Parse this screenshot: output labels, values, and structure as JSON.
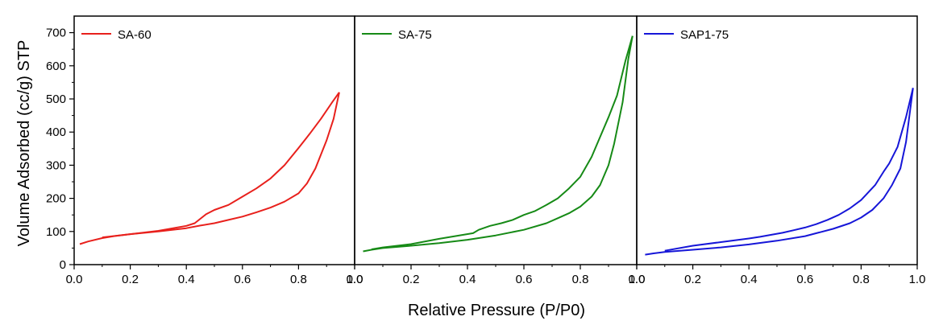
{
  "chart_data": {
    "type": "line",
    "xlabel": "Relative Pressure (P/P0)",
    "ylabel": "Volume Adsorbed (cc/g) STP",
    "xlim": [
      0,
      1
    ],
    "ylim": [
      0,
      750
    ],
    "x_ticks": [
      "0.0",
      "0.2",
      "0.4",
      "0.6",
      "0.8",
      "1.0"
    ],
    "y_ticks": [
      "0",
      "100",
      "200",
      "300",
      "400",
      "500",
      "600",
      "700"
    ],
    "grid": false,
    "legend_position": "top-left",
    "panels": [
      {
        "legend": "SA-60",
        "color": "#e8201c",
        "adsorption": [
          [
            0.02,
            62
          ],
          [
            0.05,
            70
          ],
          [
            0.1,
            80
          ],
          [
            0.15,
            87
          ],
          [
            0.2,
            92
          ],
          [
            0.3,
            100
          ],
          [
            0.4,
            110
          ],
          [
            0.45,
            118
          ],
          [
            0.5,
            125
          ],
          [
            0.55,
            135
          ],
          [
            0.6,
            145
          ],
          [
            0.65,
            158
          ],
          [
            0.7,
            172
          ],
          [
            0.75,
            190
          ],
          [
            0.8,
            215
          ],
          [
            0.83,
            245
          ],
          [
            0.86,
            290
          ],
          [
            0.9,
            375
          ],
          [
            0.925,
            440
          ],
          [
            0.945,
            520
          ]
        ],
        "desorption": [
          [
            0.945,
            520
          ],
          [
            0.92,
            490
          ],
          [
            0.88,
            440
          ],
          [
            0.84,
            395
          ],
          [
            0.8,
            352
          ],
          [
            0.75,
            300
          ],
          [
            0.7,
            260
          ],
          [
            0.65,
            230
          ],
          [
            0.6,
            205
          ],
          [
            0.55,
            180
          ],
          [
            0.5,
            165
          ],
          [
            0.47,
            152
          ],
          [
            0.43,
            125
          ],
          [
            0.4,
            117
          ],
          [
            0.3,
            102
          ],
          [
            0.2,
            92
          ],
          [
            0.1,
            82
          ]
        ]
      },
      {
        "legend": "SA-75",
        "color": "#168a16",
        "adsorption": [
          [
            0.03,
            40
          ],
          [
            0.06,
            45
          ],
          [
            0.1,
            50
          ],
          [
            0.2,
            57
          ],
          [
            0.3,
            65
          ],
          [
            0.4,
            75
          ],
          [
            0.5,
            88
          ],
          [
            0.6,
            105
          ],
          [
            0.68,
            125
          ],
          [
            0.72,
            140
          ],
          [
            0.76,
            155
          ],
          [
            0.8,
            175
          ],
          [
            0.84,
            205
          ],
          [
            0.87,
            240
          ],
          [
            0.9,
            300
          ],
          [
            0.92,
            365
          ],
          [
            0.95,
            490
          ],
          [
            0.97,
            620
          ],
          [
            0.985,
            690
          ]
        ],
        "desorption": [
          [
            0.985,
            690
          ],
          [
            0.96,
            615
          ],
          [
            0.93,
            510
          ],
          [
            0.9,
            445
          ],
          [
            0.87,
            385
          ],
          [
            0.84,
            325
          ],
          [
            0.8,
            265
          ],
          [
            0.76,
            230
          ],
          [
            0.72,
            200
          ],
          [
            0.68,
            180
          ],
          [
            0.64,
            162
          ],
          [
            0.6,
            150
          ],
          [
            0.56,
            135
          ],
          [
            0.52,
            125
          ],
          [
            0.48,
            117
          ],
          [
            0.44,
            105
          ],
          [
            0.42,
            95
          ],
          [
            0.3,
            78
          ],
          [
            0.2,
            62
          ],
          [
            0.1,
            52
          ],
          [
            0.06,
            46
          ]
        ]
      },
      {
        "legend": "SAP1-75",
        "color": "#1616d8",
        "adsorption": [
          [
            0.03,
            30
          ],
          [
            0.06,
            34
          ],
          [
            0.1,
            38
          ],
          [
            0.2,
            45
          ],
          [
            0.3,
            52
          ],
          [
            0.4,
            61
          ],
          [
            0.5,
            72
          ],
          [
            0.6,
            86
          ],
          [
            0.7,
            108
          ],
          [
            0.76,
            125
          ],
          [
            0.8,
            142
          ],
          [
            0.84,
            165
          ],
          [
            0.88,
            200
          ],
          [
            0.91,
            240
          ],
          [
            0.94,
            290
          ],
          [
            0.96,
            370
          ],
          [
            0.985,
            533
          ]
        ],
        "desorption": [
          [
            0.985,
            533
          ],
          [
            0.96,
            445
          ],
          [
            0.93,
            355
          ],
          [
            0.9,
            305
          ],
          [
            0.88,
            280
          ],
          [
            0.85,
            240
          ],
          [
            0.8,
            195
          ],
          [
            0.76,
            170
          ],
          [
            0.72,
            150
          ],
          [
            0.68,
            135
          ],
          [
            0.64,
            122
          ],
          [
            0.6,
            112
          ],
          [
            0.56,
            104
          ],
          [
            0.52,
            96
          ],
          [
            0.48,
            90
          ],
          [
            0.44,
            84
          ],
          [
            0.4,
            79
          ],
          [
            0.3,
            68
          ],
          [
            0.2,
            57
          ],
          [
            0.1,
            42
          ]
        ]
      }
    ]
  }
}
